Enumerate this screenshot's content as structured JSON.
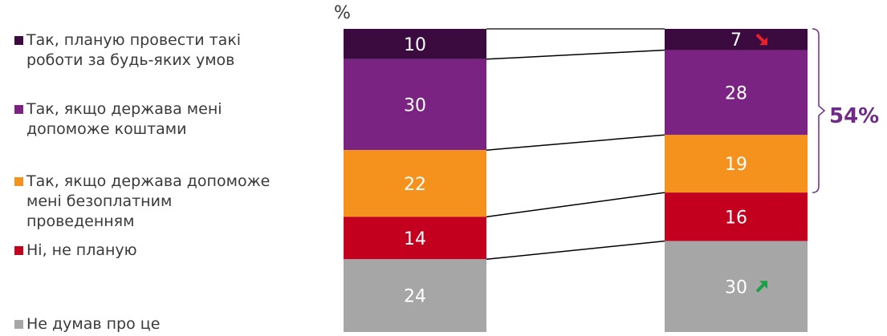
{
  "chart_data": {
    "type": "bar",
    "stacked": true,
    "unit_label": "%",
    "categories": [
      "",
      ""
    ],
    "series": [
      {
        "name": "Так, планую провести такі\nроботи за будь-яких умов",
        "color": "#3b0a3f",
        "values": [
          10,
          7
        ]
      },
      {
        "name": "Так, якщо держава мені\nдопоможе коштами",
        "color": "#7b2382",
        "values": [
          30,
          28
        ]
      },
      {
        "name": "Так, якщо держава допоможе\nмені безоплатним\nпроведенням",
        "color": "#f5921e",
        "values": [
          22,
          19
        ]
      },
      {
        "name": "Ні, не планую",
        "color": "#c3001d",
        "values": [
          14,
          16
        ]
      },
      {
        "name": "Не думав про це",
        "color": "#a6a6a6",
        "values": [
          24,
          30
        ]
      }
    ],
    "annotations": {
      "bracket_total": "54%",
      "bracket_color": "#6f2a87",
      "down_arrow": {
        "series": 0,
        "bar": 1,
        "color": "#e8202a",
        "icon": "arrow-down-right-icon"
      },
      "up_arrow": {
        "series": 4,
        "bar": 1,
        "color": "#1e9e49",
        "icon": "arrow-up-right-icon"
      }
    },
    "legend_position": "left",
    "grid": false
  }
}
